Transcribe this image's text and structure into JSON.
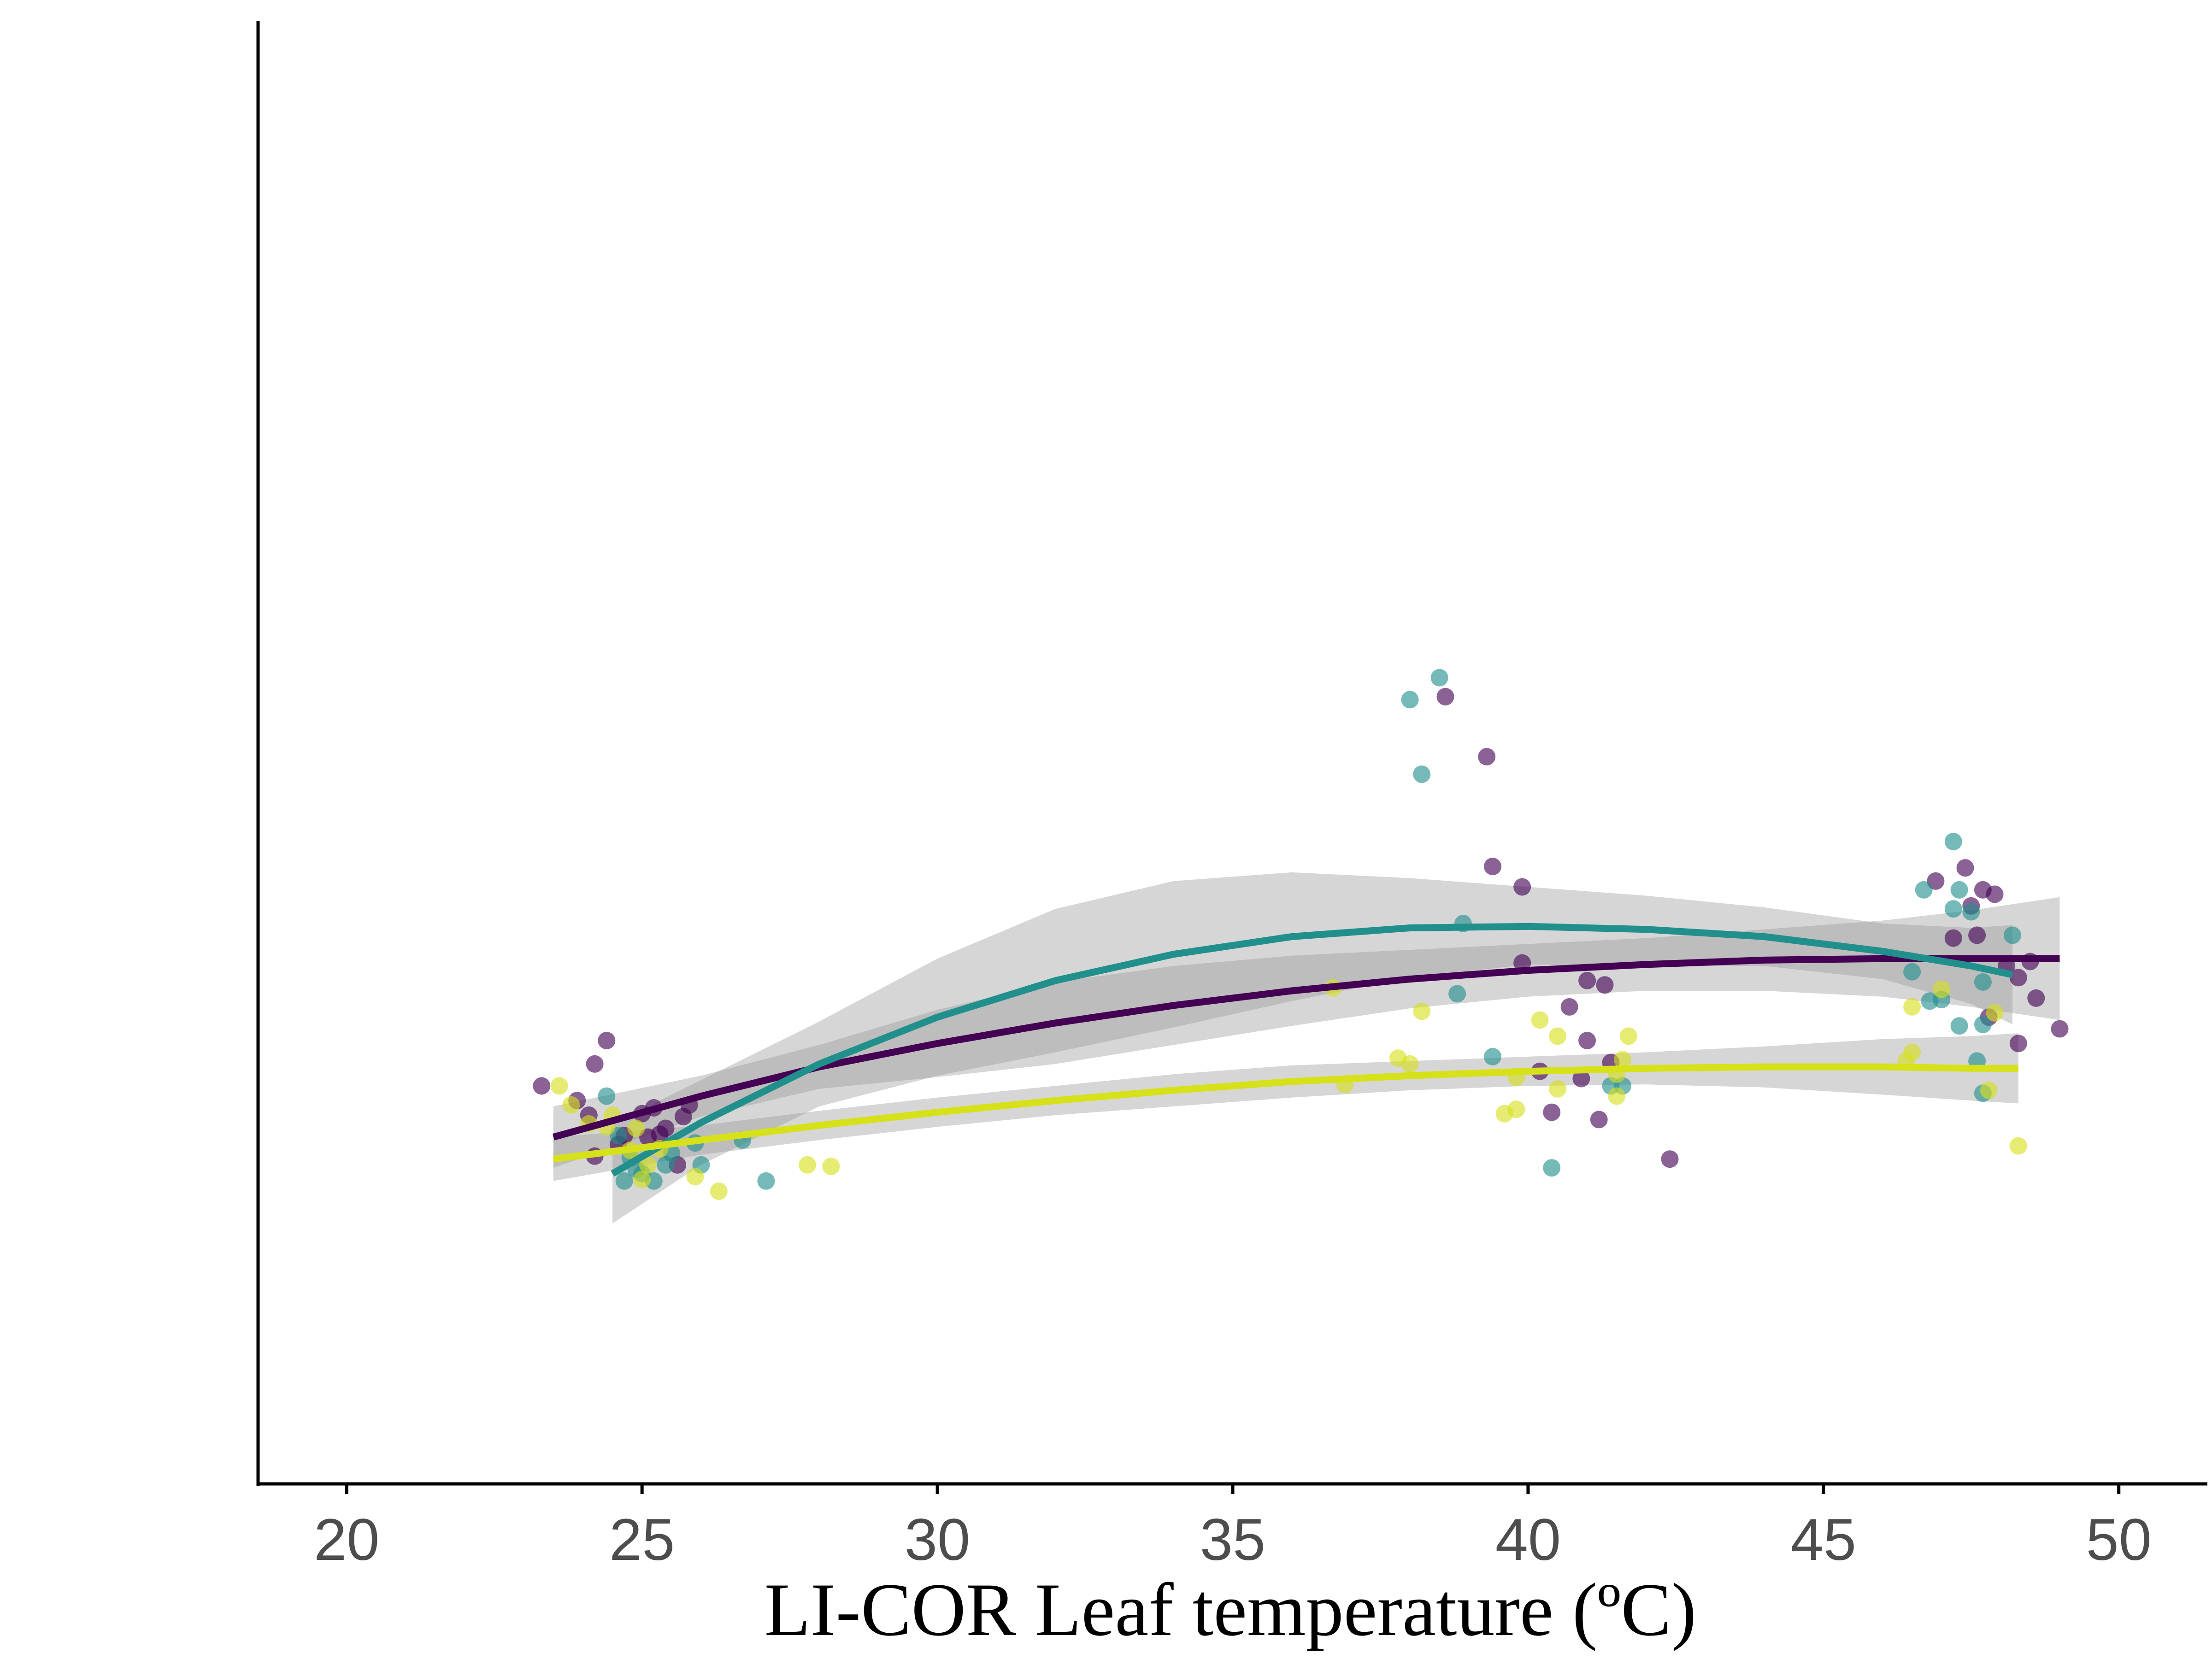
{
  "chart_data": {
    "type": "scatter",
    "title": "",
    "xlabel": "LI-COR Leaf temperature (ºC)",
    "ylabel": "",
    "xlim": [
      18.5,
      51.5
    ],
    "ylim": [
      0,
      1
    ],
    "x_ticks": [
      20,
      25,
      30,
      35,
      40,
      45,
      50
    ],
    "x_tick_labels": [
      "20",
      "25",
      "30",
      "35",
      "40",
      "45",
      "50"
    ],
    "y_ticks_shown": false,
    "grid": false,
    "legend": "none",
    "colors": {
      "purple": "#440154",
      "teal": "#21908c",
      "yellow": "#d7e11a",
      "band": "#999999",
      "axis": "#000000"
    },
    "series": [
      {
        "color": "#440154",
        "points": [
          [
            23.3,
            0.272
          ],
          [
            23.9,
            0.262
          ],
          [
            24.2,
            0.287
          ],
          [
            24.4,
            0.303
          ],
          [
            24.1,
            0.252
          ],
          [
            24.6,
            0.232
          ],
          [
            24.2,
            0.224
          ],
          [
            24.7,
            0.238
          ],
          [
            25.0,
            0.253
          ],
          [
            25.2,
            0.257
          ],
          [
            25.3,
            0.239
          ],
          [
            25.7,
            0.251
          ],
          [
            25.8,
            0.259
          ],
          [
            25.6,
            0.218
          ],
          [
            25.4,
            0.243
          ],
          [
            25.1,
            0.237
          ],
          [
            38.6,
            0.538
          ],
          [
            39.3,
            0.497
          ],
          [
            39.4,
            0.422
          ],
          [
            39.9,
            0.408
          ],
          [
            39.9,
            0.356
          ],
          [
            41.0,
            0.344
          ],
          [
            41.3,
            0.341
          ],
          [
            40.7,
            0.326
          ],
          [
            41.0,
            0.303
          ],
          [
            41.4,
            0.288
          ],
          [
            40.2,
            0.282
          ],
          [
            40.9,
            0.277
          ],
          [
            40.4,
            0.254
          ],
          [
            41.2,
            0.249
          ],
          [
            42.4,
            0.222
          ],
          [
            46.9,
            0.412
          ],
          [
            47.4,
            0.421
          ],
          [
            47.7,
            0.406
          ],
          [
            47.9,
            0.403
          ],
          [
            47.5,
            0.395
          ],
          [
            47.2,
            0.373
          ],
          [
            47.6,
            0.375
          ],
          [
            48.1,
            0.354
          ],
          [
            48.3,
            0.346
          ],
          [
            48.5,
            0.357
          ],
          [
            48.6,
            0.332
          ],
          [
            49.0,
            0.311
          ],
          [
            48.3,
            0.301
          ],
          [
            47.8,
            0.319
          ]
        ],
        "fit": {
          "x": [
            23.5,
            26,
            28,
            30,
            32,
            34,
            36,
            38,
            40,
            42,
            44,
            46,
            47.5,
            49
          ],
          "y": [
            0.237,
            0.265,
            0.285,
            0.301,
            0.315,
            0.327,
            0.337,
            0.345,
            0.351,
            0.355,
            0.358,
            0.359,
            0.359,
            0.359
          ],
          "lo": [
            0.216,
            0.251,
            0.27,
            0.278,
            0.287,
            0.3,
            0.313,
            0.325,
            0.333,
            0.337,
            0.337,
            0.333,
            0.326,
            0.317
          ],
          "hi": [
            0.258,
            0.279,
            0.3,
            0.324,
            0.343,
            0.354,
            0.361,
            0.365,
            0.369,
            0.373,
            0.379,
            0.385,
            0.392,
            0.401
          ]
        }
      },
      {
        "color": "#21908c",
        "points": [
          [
            24.4,
            0.265
          ],
          [
            24.6,
            0.238
          ],
          [
            24.8,
            0.223
          ],
          [
            24.9,
            0.215
          ],
          [
            25.0,
            0.212
          ],
          [
            25.2,
            0.207
          ],
          [
            25.4,
            0.218
          ],
          [
            25.5,
            0.226
          ],
          [
            25.9,
            0.233
          ],
          [
            26.0,
            0.218
          ],
          [
            26.7,
            0.235
          ],
          [
            27.1,
            0.207
          ],
          [
            24.7,
            0.207
          ],
          [
            38.0,
            0.536
          ],
          [
            38.5,
            0.551
          ],
          [
            38.2,
            0.485
          ],
          [
            38.9,
            0.383
          ],
          [
            38.8,
            0.335
          ],
          [
            39.4,
            0.292
          ],
          [
            41.4,
            0.272
          ],
          [
            41.6,
            0.272
          ],
          [
            40.4,
            0.216
          ],
          [
            47.2,
            0.439
          ],
          [
            46.7,
            0.406
          ],
          [
            47.3,
            0.406
          ],
          [
            47.2,
            0.393
          ],
          [
            47.5,
            0.391
          ],
          [
            48.2,
            0.375
          ],
          [
            46.5,
            0.35
          ],
          [
            47.7,
            0.343
          ],
          [
            46.8,
            0.33
          ],
          [
            47.0,
            0.331
          ],
          [
            47.3,
            0.313
          ],
          [
            47.7,
            0.314
          ],
          [
            47.6,
            0.289
          ],
          [
            47.7,
            0.267
          ]
        ],
        "fit": {
          "x": [
            24.5,
            26,
            28,
            30,
            32,
            34,
            36,
            38,
            40,
            42,
            44,
            46,
            47.5,
            48.2
          ],
          "y": [
            0.212,
            0.247,
            0.287,
            0.319,
            0.344,
            0.362,
            0.374,
            0.38,
            0.381,
            0.379,
            0.374,
            0.364,
            0.354,
            0.348
          ],
          "lo": [
            0.178,
            0.218,
            0.258,
            0.279,
            0.295,
            0.312,
            0.33,
            0.346,
            0.355,
            0.354,
            0.354,
            0.345,
            0.328,
            0.314
          ],
          "hi": [
            0.246,
            0.276,
            0.316,
            0.359,
            0.393,
            0.412,
            0.418,
            0.414,
            0.408,
            0.402,
            0.394,
            0.383,
            0.38,
            0.382
          ]
        }
      },
      {
        "color": "#d7e11a",
        "points": [
          [
            23.6,
            0.272
          ],
          [
            23.8,
            0.259
          ],
          [
            24.1,
            0.246
          ],
          [
            24.4,
            0.244
          ],
          [
            24.5,
            0.252
          ],
          [
            24.8,
            0.228
          ],
          [
            24.9,
            0.243
          ],
          [
            25.0,
            0.208
          ],
          [
            25.1,
            0.218
          ],
          [
            25.3,
            0.229
          ],
          [
            25.9,
            0.21
          ],
          [
            26.3,
            0.2
          ],
          [
            27.8,
            0.218
          ],
          [
            28.2,
            0.217
          ],
          [
            36.7,
            0.339
          ],
          [
            36.9,
            0.273
          ],
          [
            37.8,
            0.291
          ],
          [
            38.0,
            0.287
          ],
          [
            38.2,
            0.323
          ],
          [
            39.6,
            0.253
          ],
          [
            39.8,
            0.256
          ],
          [
            39.8,
            0.278
          ],
          [
            40.2,
            0.317
          ],
          [
            40.5,
            0.306
          ],
          [
            40.5,
            0.27
          ],
          [
            41.5,
            0.28
          ],
          [
            41.6,
            0.29
          ],
          [
            41.7,
            0.306
          ],
          [
            41.5,
            0.265
          ],
          [
            46.4,
            0.289
          ],
          [
            46.5,
            0.295
          ],
          [
            46.5,
            0.326
          ],
          [
            47.0,
            0.338
          ],
          [
            47.9,
            0.322
          ],
          [
            48.3,
            0.231
          ],
          [
            47.8,
            0.269
          ]
        ],
        "fit": {
          "x": [
            23.5,
            26,
            28,
            30,
            32,
            34,
            36,
            38,
            40,
            42,
            44,
            46,
            47.5,
            48.3
          ],
          "y": [
            0.222,
            0.235,
            0.245,
            0.254,
            0.262,
            0.269,
            0.275,
            0.279,
            0.282,
            0.284,
            0.285,
            0.285,
            0.284,
            0.284
          ],
          "lo": [
            0.207,
            0.225,
            0.235,
            0.244,
            0.252,
            0.258,
            0.264,
            0.269,
            0.272,
            0.273,
            0.271,
            0.266,
            0.262,
            0.26
          ],
          "hi": [
            0.237,
            0.245,
            0.255,
            0.264,
            0.272,
            0.28,
            0.286,
            0.289,
            0.292,
            0.295,
            0.299,
            0.304,
            0.306,
            0.308
          ]
        }
      }
    ]
  }
}
